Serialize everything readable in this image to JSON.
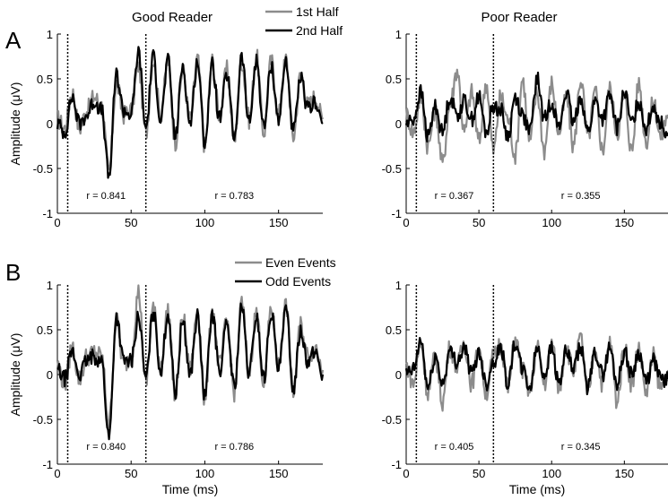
{
  "figure": {
    "labels": {
      "A": "A",
      "B": "B"
    }
  },
  "chart_data": [
    {
      "type": "line",
      "panel": "A",
      "title": "Good Reader",
      "xlabel": "",
      "ylabel": "Amplitude (μV)",
      "xlim": [
        0,
        180
      ],
      "ylim": [
        -1,
        1
      ],
      "xticks": [
        0,
        50,
        100,
        150
      ],
      "yticks": [
        -1,
        -0.5,
        0,
        0.5,
        1
      ],
      "ytick_labels": [
        "-1",
        "-0.5",
        "0",
        "0.5",
        "1"
      ],
      "xtick_labels": [
        "0",
        "50",
        "100",
        "150"
      ],
      "vlines": [
        7,
        60
      ],
      "annotations": [
        {
          "text": "r = 0.841",
          "x": 33,
          "y": -0.8
        },
        {
          "text": "r = 0.783",
          "x": 120,
          "y": -0.8
        }
      ],
      "legend": {
        "position": "top-right",
        "entries": [
          "1st Half",
          "2nd Half"
        ]
      },
      "series": [
        {
          "name": "1st Half",
          "color": "#8c8c8c",
          "x": [
            0,
            5,
            10,
            15,
            20,
            25,
            30,
            35,
            40,
            45,
            50,
            55,
            60,
            65,
            70,
            75,
            80,
            85,
            90,
            95,
            100,
            105,
            110,
            115,
            120,
            125,
            130,
            135,
            140,
            145,
            150,
            155,
            160,
            165,
            170,
            175,
            180
          ],
          "y": [
            0.05,
            -0.05,
            0.35,
            -0.05,
            0.15,
            0.3,
            0.2,
            -0.55,
            0.45,
            0.1,
            0.15,
            0.65,
            -0.1,
            0.72,
            0.1,
            0.7,
            -0.2,
            0.6,
            0.05,
            0.72,
            -0.25,
            0.7,
            0.1,
            0.6,
            -0.2,
            0.7,
            0.05,
            0.75,
            -0.1,
            0.7,
            0.1,
            0.72,
            -0.15,
            0.55,
            0.2,
            0.3,
            0.05
          ]
        },
        {
          "name": "2nd Half",
          "color": "#000000",
          "x": [
            0,
            5,
            10,
            15,
            20,
            25,
            30,
            35,
            40,
            45,
            50,
            55,
            60,
            65,
            70,
            75,
            80,
            85,
            90,
            95,
            100,
            105,
            110,
            115,
            120,
            125,
            130,
            135,
            140,
            145,
            150,
            155,
            160,
            165,
            170,
            175,
            180
          ],
          "y": [
            0.0,
            -0.1,
            0.3,
            0.0,
            0.1,
            0.25,
            0.15,
            -0.6,
            0.55,
            0.15,
            0.1,
            0.8,
            -0.05,
            0.75,
            0.05,
            0.7,
            -0.15,
            0.65,
            0.0,
            0.7,
            -0.2,
            0.65,
            0.05,
            0.55,
            -0.15,
            0.75,
            0.0,
            0.7,
            -0.05,
            0.65,
            0.05,
            0.7,
            -0.1,
            0.5,
            0.15,
            0.25,
            0.0
          ]
        }
      ]
    },
    {
      "type": "line",
      "panel": "A",
      "title": "Poor Reader",
      "xlabel": "",
      "ylabel": "",
      "xlim": [
        0,
        180
      ],
      "ylim": [
        -1,
        1
      ],
      "xticks": [
        0,
        50,
        100,
        150
      ],
      "yticks": [
        -1,
        -0.5,
        0,
        0.5,
        1
      ],
      "ytick_labels": [
        "-1",
        "-0.5",
        "0",
        "0.5",
        "1"
      ],
      "xtick_labels": [
        "0",
        "50",
        "100",
        "150"
      ],
      "vlines": [
        7,
        60
      ],
      "annotations": [
        {
          "text": "r = 0.367",
          "x": 33,
          "y": -0.8
        },
        {
          "text": "r = 0.355",
          "x": 120,
          "y": -0.8
        }
      ],
      "series": [
        {
          "name": "1st Half",
          "color": "#8c8c8c",
          "x": [
            0,
            5,
            10,
            15,
            20,
            25,
            30,
            35,
            40,
            45,
            50,
            55,
            60,
            65,
            70,
            75,
            80,
            85,
            90,
            95,
            100,
            105,
            110,
            115,
            120,
            125,
            130,
            135,
            140,
            145,
            150,
            155,
            160,
            165,
            170,
            175,
            180
          ],
          "y": [
            0.1,
            -0.1,
            0.3,
            -0.25,
            0.15,
            -0.45,
            0.2,
            0.6,
            -0.1,
            0.35,
            -0.2,
            0.45,
            -0.3,
            0.3,
            0.05,
            -0.35,
            0.5,
            -0.2,
            0.35,
            -0.3,
            0.45,
            -0.1,
            0.3,
            -0.25,
            0.5,
            -0.15,
            0.35,
            -0.3,
            0.4,
            -0.1,
            0.3,
            -0.3,
            0.45,
            -0.2,
            0.25,
            -0.15,
            0.1
          ]
        },
        {
          "name": "2nd Half",
          "color": "#000000",
          "x": [
            0,
            5,
            10,
            15,
            20,
            25,
            30,
            35,
            40,
            45,
            50,
            55,
            60,
            65,
            70,
            75,
            80,
            85,
            90,
            95,
            100,
            105,
            110,
            115,
            120,
            125,
            130,
            135,
            140,
            145,
            150,
            155,
            160,
            165,
            170,
            175,
            180
          ],
          "y": [
            0.0,
            0.05,
            0.35,
            -0.15,
            0.2,
            -0.1,
            0.3,
            0.1,
            0.25,
            0.05,
            0.3,
            -0.1,
            0.2,
            0.15,
            -0.15,
            0.3,
            0.1,
            -0.1,
            0.5,
            0.05,
            0.25,
            -0.05,
            0.35,
            0.0,
            0.3,
            -0.1,
            0.25,
            0.05,
            0.3,
            -0.05,
            0.35,
            0.0,
            0.25,
            -0.05,
            0.2,
            0.0,
            -0.1
          ]
        }
      ]
    },
    {
      "type": "line",
      "panel": "B",
      "title": "",
      "xlabel": "Time (ms)",
      "ylabel": "Amplitude (μV)",
      "xlim": [
        0,
        180
      ],
      "ylim": [
        -1,
        1
      ],
      "xticks": [
        0,
        50,
        100,
        150
      ],
      "yticks": [
        -1,
        -0.5,
        0,
        0.5,
        1
      ],
      "ytick_labels": [
        "-1",
        "-0.5",
        "0",
        "0.5",
        "1"
      ],
      "xtick_labels": [
        "0",
        "50",
        "100",
        "150"
      ],
      "vlines": [
        7,
        60
      ],
      "annotations": [
        {
          "text": "r = 0.840",
          "x": 33,
          "y": -0.8
        },
        {
          "text": "r = 0.786",
          "x": 120,
          "y": -0.8
        }
      ],
      "legend": {
        "position": "top-right",
        "entries": [
          "Even Events",
          "Odd Events"
        ]
      },
      "series": [
        {
          "name": "Even Events",
          "color": "#8c8c8c",
          "x": [
            0,
            5,
            10,
            15,
            20,
            25,
            30,
            35,
            40,
            45,
            50,
            55,
            60,
            65,
            70,
            75,
            80,
            85,
            90,
            95,
            100,
            105,
            110,
            115,
            120,
            125,
            130,
            135,
            140,
            145,
            150,
            155,
            160,
            165,
            170,
            175,
            180
          ],
          "y": [
            0.1,
            -0.1,
            0.3,
            -0.05,
            0.2,
            0.25,
            0.2,
            -0.55,
            0.6,
            0.1,
            0.2,
            0.92,
            -0.1,
            0.75,
            0.1,
            0.72,
            -0.25,
            0.65,
            0.05,
            0.7,
            -0.3,
            0.72,
            0.1,
            0.6,
            -0.2,
            0.8,
            0.05,
            0.7,
            -0.1,
            0.75,
            0.1,
            0.78,
            -0.2,
            0.55,
            0.2,
            0.3,
            0.05
          ]
        },
        {
          "name": "Odd Events",
          "color": "#000000",
          "x": [
            0,
            5,
            10,
            15,
            20,
            25,
            30,
            35,
            40,
            45,
            50,
            55,
            60,
            65,
            70,
            75,
            80,
            85,
            90,
            95,
            100,
            105,
            110,
            115,
            120,
            125,
            130,
            135,
            140,
            145,
            150,
            155,
            160,
            165,
            170,
            175,
            180
          ],
          "y": [
            0.05,
            -0.05,
            0.25,
            0.0,
            0.15,
            0.2,
            0.15,
            -0.7,
            0.65,
            0.15,
            0.15,
            0.65,
            -0.05,
            0.7,
            0.05,
            0.68,
            -0.2,
            0.6,
            0.0,
            0.65,
            -0.25,
            0.68,
            0.05,
            0.55,
            -0.15,
            0.75,
            0.0,
            0.65,
            -0.05,
            0.7,
            0.05,
            0.72,
            -0.15,
            0.5,
            0.15,
            0.25,
            0.0
          ]
        }
      ]
    },
    {
      "type": "line",
      "panel": "B",
      "title": "",
      "xlabel": "Time (ms)",
      "ylabel": "",
      "xlim": [
        0,
        180
      ],
      "ylim": [
        -1,
        1
      ],
      "xticks": [
        0,
        50,
        100,
        150
      ],
      "yticks": [
        -1,
        -0.5,
        0,
        0.5,
        1
      ],
      "ytick_labels": [
        "-1",
        "-0.5",
        "0",
        "0.5",
        "1"
      ],
      "xtick_labels": [
        "0",
        "50",
        "100",
        "150"
      ],
      "vlines": [
        7,
        60
      ],
      "annotations": [
        {
          "text": "r = 0.405",
          "x": 33,
          "y": -0.8
        },
        {
          "text": "r = 0.345",
          "x": 120,
          "y": -0.8
        }
      ],
      "series": [
        {
          "name": "Even Events",
          "color": "#8c8c8c",
          "x": [
            0,
            5,
            10,
            15,
            20,
            25,
            30,
            35,
            40,
            45,
            50,
            55,
            60,
            65,
            70,
            75,
            80,
            85,
            90,
            95,
            100,
            105,
            110,
            115,
            120,
            125,
            130,
            135,
            140,
            145,
            150,
            155,
            160,
            165,
            170,
            175,
            180
          ],
          "y": [
            0.1,
            -0.1,
            0.35,
            -0.2,
            0.2,
            -0.3,
            0.3,
            0.1,
            0.35,
            -0.1,
            0.3,
            -0.2,
            0.2,
            0.35,
            -0.15,
            0.4,
            0.05,
            -0.2,
            0.3,
            -0.1,
            0.35,
            -0.15,
            0.3,
            0.05,
            0.4,
            -0.2,
            0.3,
            -0.1,
            0.35,
            -0.3,
            0.3,
            -0.1,
            0.3,
            -0.2,
            0.2,
            -0.15,
            0.05
          ]
        },
        {
          "name": "Odd Events",
          "color": "#000000",
          "x": [
            0,
            5,
            10,
            15,
            20,
            25,
            30,
            35,
            40,
            45,
            50,
            55,
            60,
            65,
            70,
            75,
            80,
            85,
            90,
            95,
            100,
            105,
            110,
            115,
            120,
            125,
            130,
            135,
            140,
            145,
            150,
            155,
            160,
            165,
            170,
            175,
            180
          ],
          "y": [
            0.0,
            0.05,
            0.38,
            -0.15,
            0.2,
            -0.1,
            0.25,
            0.15,
            0.3,
            0.0,
            0.25,
            -0.1,
            0.15,
            0.3,
            -0.1,
            0.35,
            0.05,
            -0.15,
            0.3,
            0.0,
            0.3,
            -0.1,
            0.25,
            0.05,
            0.3,
            -0.15,
            0.25,
            0.0,
            0.3,
            -0.1,
            0.25,
            0.0,
            0.25,
            -0.1,
            0.15,
            -0.05,
            -0.05
          ]
        }
      ]
    }
  ]
}
